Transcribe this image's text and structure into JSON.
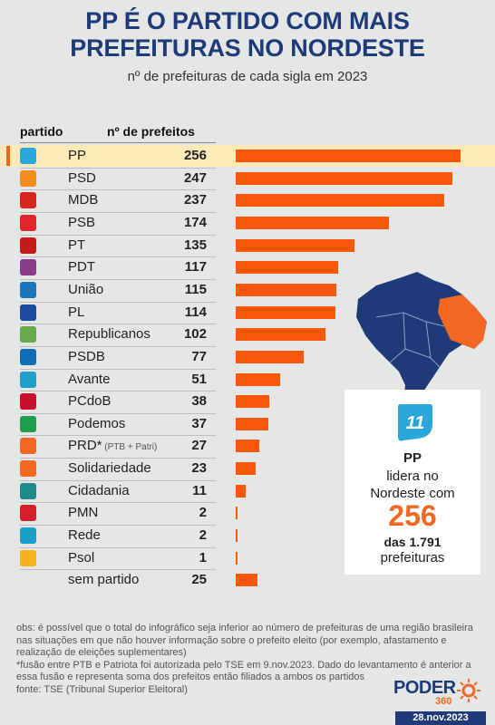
{
  "header": {
    "title_line1": "PP É O PARTIDO COM MAIS",
    "title_line2": "PREFEITURAS NO NORDESTE",
    "subtitle": "nº de prefeituras de cada sigla em 2023"
  },
  "columns": {
    "party": "partido",
    "count": "nº de prefeitos"
  },
  "chart_data": {
    "type": "bar",
    "title": "PP É O PARTIDO COM MAIS PREFEITURAS NO NORDESTE",
    "subtitle": "nº de prefeituras de cada sigla em 2023",
    "orientation": "horizontal",
    "xlim": [
      0,
      256
    ],
    "highlight": "PP",
    "categories": [
      "PP",
      "PSD",
      "MDB",
      "PSB",
      "PT",
      "PDT",
      "União",
      "PL",
      "Republicanos",
      "PSDB",
      "Avante",
      "PCdoB",
      "Podemos",
      "PRD*",
      "Solidariedade",
      "Cidadania",
      "PMN",
      "Rede",
      "Psol",
      "sem partido"
    ],
    "values": [
      256,
      247,
      237,
      174,
      135,
      117,
      115,
      114,
      102,
      77,
      51,
      38,
      37,
      27,
      23,
      11,
      2,
      2,
      1,
      25
    ],
    "category_notes": {
      "PRD*": "(PTB + Patri)"
    }
  },
  "logo_colors": [
    "#2aa7d8",
    "#f28c1b",
    "#d7261e",
    "#e0262b",
    "#c41a1a",
    "#8a3d8c",
    "#1a75bc",
    "#1a4d9e",
    "#6aa84f",
    "#0d6fb8",
    "#20a0c8",
    "#c8102e",
    "#1e9f4e",
    "#f26722",
    "#f26722",
    "#1e8a8a",
    "#d3202a",
    "#1aa0c8",
    "#f5b21b",
    "#e5e6e6"
  ],
  "colors": {
    "bar": "#f9580a",
    "accent": "#f26722",
    "navy": "#1e3a78",
    "highlight_row": "#fdeab7"
  },
  "callout": {
    "party": "PP",
    "line1": "lidera no",
    "line2": "Nordeste com",
    "number": "256",
    "line3": "das 1.791",
    "line4": "prefeituras",
    "badge_number": "11"
  },
  "notes": {
    "obs": "obs: é possível que o total do infográfico seja inferior ao número de prefeituras de uma região brasileira nas situações em que não houver informação sobre o prefeito eleito (por exemplo, afastamento e realização de eleições suplementares)",
    "fusion": "*fusão entre PTB e Patriota foi autorizada pelo TSE em 9.nov.2023. Dado do levantamento é anterior a essa fusão e representa soma dos prefeitos então filiados a ambos os partidos",
    "source": "fonte: TSE (Tribunal Superior Eleitoral)"
  },
  "brand": {
    "name": "PODER",
    "number": "360",
    "date": "28.nov.2023"
  }
}
